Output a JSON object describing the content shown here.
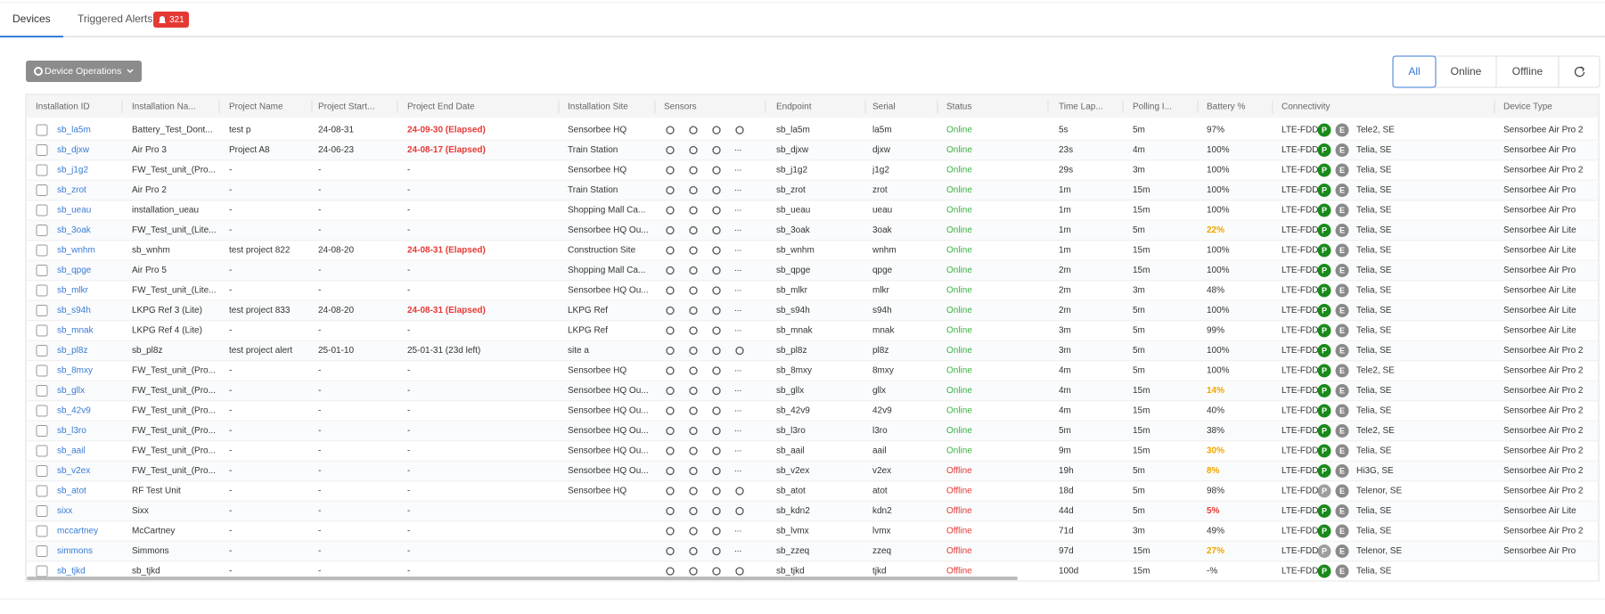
{
  "tabs": {
    "devices": "Devices",
    "alerts": "Triggered Alerts",
    "alert_count": "321"
  },
  "toolbar": {
    "operations": "Device Operations",
    "filters": [
      "All",
      "Online",
      "Offline"
    ]
  },
  "table": {
    "columns": [
      "Installation ID",
      "Installation Na...",
      "Project Name",
      "Project Start...",
      "Project End Date",
      "Installation Site",
      "Sensors",
      "Endpoint",
      "Serial",
      "Status",
      "Time Lap...",
      "Polling I...",
      "Battery %",
      "Connectivity",
      "Device Type"
    ],
    "status_colors": {
      "Online": "#3cb043",
      "Offline": "#e53935"
    },
    "rows": [
      {
        "id": "sb_la5m",
        "name": "Battery_Test_Dont...",
        "project": "test p",
        "start": "24-08-31",
        "end": "24-09-30 (Elapsed)",
        "end_color": "#e53935",
        "site": "Sensorbee HQ",
        "endpoint": "sb_la5m",
        "serial": "la5m",
        "status": "Online",
        "time": "5s",
        "polling": "5m",
        "battery": "97%",
        "network": "LTE-FDD",
        "p": "P",
        "e": "E",
        "operator": "Tele2, SE",
        "type": "Sensorbee Air Pro 2"
      },
      {
        "id": "sb_djxw",
        "name": "Air Pro 3",
        "project": "Project A8",
        "start": "24-06-23",
        "end": "24-08-17 (Elapsed)",
        "end_color": "#e53935",
        "site": "Train Station",
        "more": "...",
        "endpoint": "sb_djxw",
        "serial": "djxw",
        "status": "Online",
        "time": "23s",
        "polling": "4m",
        "battery": "100%",
        "network": "LTE-FDD",
        "p": "P",
        "e": "E",
        "operator": "Telia, SE",
        "type": "Sensorbee Air Pro"
      },
      {
        "id": "sb_j1g2",
        "name": "FW_Test_unit_(Pro...",
        "project": "-",
        "start": "-",
        "end": "-",
        "site": "Sensorbee HQ",
        "more": "...",
        "endpoint": "sb_j1g2",
        "serial": "j1g2",
        "status": "Online",
        "time": "29s",
        "polling": "3m",
        "battery": "100%",
        "network": "LTE-FDD",
        "p": "P",
        "e": "E",
        "operator": "Telia, SE",
        "type": "Sensorbee Air Pro 2"
      },
      {
        "id": "sb_zrot",
        "name": "Air Pro 2",
        "project": "-",
        "start": "-",
        "end": "-",
        "site": "Train Station",
        "more": "...",
        "endpoint": "sb_zrot",
        "serial": "zrot",
        "status": "Online",
        "time": "1m",
        "polling": "15m",
        "battery": "100%",
        "network": "LTE-FDD",
        "p": "P",
        "e": "E",
        "operator": "Telia, SE",
        "type": "Sensorbee Air Pro"
      },
      {
        "id": "sb_ueau",
        "name": "installation_ueau",
        "project": "-",
        "start": "-",
        "end": "-",
        "site": "Shopping Mall Ca...",
        "more": "...",
        "endpoint": "sb_ueau",
        "serial": "ueau",
        "status": "Online",
        "time": "1m",
        "polling": "15m",
        "battery": "100%",
        "network": "LTE-FDD",
        "p": "P",
        "e": "E",
        "operator": "Telia, SE",
        "type": "Sensorbee Air Pro"
      },
      {
        "id": "sb_3oak",
        "name": "FW_Test_unit_(Lite...",
        "project": "-",
        "start": "-",
        "end": "-",
        "site": "Sensorbee HQ Ou...",
        "more": "...",
        "endpoint": "sb_3oak",
        "serial": "3oak",
        "status": "Online",
        "time": "1m",
        "polling": "5m",
        "battery": "22%",
        "battery_color": "#f0a500",
        "network": "LTE-FDD",
        "p": "P",
        "e": "E",
        "operator": "Telia, SE",
        "type": "Sensorbee Air Lite"
      },
      {
        "id": "sb_wnhm",
        "name": "sb_wnhm",
        "project": "test project 822",
        "start": "24-08-20",
        "end": "24-08-31 (Elapsed)",
        "end_color": "#e53935",
        "site": "Construction Site",
        "more": "...",
        "endpoint": "sb_wnhm",
        "serial": "wnhm",
        "status": "Online",
        "time": "1m",
        "polling": "15m",
        "battery": "100%",
        "network": "LTE-FDD",
        "p": "P",
        "e": "E",
        "operator": "Telia, SE",
        "type": "Sensorbee Air Lite"
      },
      {
        "id": "sb_qpge",
        "name": "Air Pro 5",
        "project": "-",
        "start": "-",
        "end": "-",
        "site": "Shopping Mall Ca...",
        "more": "...",
        "endpoint": "sb_qpge",
        "serial": "qpge",
        "status": "Online",
        "time": "2m",
        "polling": "15m",
        "battery": "100%",
        "network": "LTE-FDD",
        "p": "P",
        "e": "E",
        "operator": "Telia, SE",
        "type": "Sensorbee Air Pro"
      },
      {
        "id": "sb_mlkr",
        "name": "FW_Test_unit_(Lite...",
        "project": "-",
        "start": "-",
        "end": "-",
        "site": "Sensorbee HQ Ou...",
        "more": "...",
        "endpoint": "sb_mlkr",
        "serial": "mlkr",
        "status": "Online",
        "time": "2m",
        "polling": "3m",
        "battery": "48%",
        "network": "LTE-FDD",
        "p": "P",
        "e": "E",
        "operator": "Telia, SE",
        "type": "Sensorbee Air Lite"
      },
      {
        "id": "sb_s94h",
        "name": "LKPG Ref 3 (Lite)",
        "project": "test project 833",
        "start": "24-08-20",
        "end": "24-08-31 (Elapsed)",
        "end_color": "#e53935",
        "site": "LKPG Ref",
        "more": "...",
        "endpoint": "sb_s94h",
        "serial": "s94h",
        "status": "Online",
        "time": "2m",
        "polling": "5m",
        "battery": "100%",
        "network": "LTE-FDD",
        "p": "P",
        "e": "E",
        "operator": "Telia, SE",
        "type": "Sensorbee Air Lite"
      },
      {
        "id": "sb_mnak",
        "name": "LKPG Ref 4 (Lite)",
        "project": "-",
        "start": "-",
        "end": "-",
        "site": "LKPG Ref",
        "more": "...",
        "endpoint": "sb_mnak",
        "serial": "mnak",
        "status": "Online",
        "time": "3m",
        "polling": "5m",
        "battery": "99%",
        "network": "LTE-FDD",
        "p": "P",
        "e": "E",
        "operator": "Telia, SE",
        "type": "Sensorbee Air Lite"
      },
      {
        "id": "sb_pl8z",
        "name": "sb_pl8z",
        "project": "test project alert",
        "start": "25-01-10",
        "end": "25-01-31 (23d left)",
        "site": "site a",
        "endpoint": "sb_pl8z",
        "serial": "pl8z",
        "status": "Online",
        "time": "3m",
        "polling": "5m",
        "battery": "100%",
        "network": "LTE-FDD",
        "p": "P",
        "e": "E",
        "operator": "Telia, SE",
        "type": "Sensorbee Air Pro 2"
      },
      {
        "id": "sb_8mxy",
        "name": "FW_Test_unit_(Pro...",
        "project": "-",
        "start": "-",
        "end": "-",
        "site": "Sensorbee HQ",
        "more": "...",
        "endpoint": "sb_8mxy",
        "serial": "8mxy",
        "status": "Online",
        "time": "4m",
        "polling": "5m",
        "battery": "100%",
        "network": "LTE-FDD",
        "p": "P",
        "e": "E",
        "operator": "Tele2, SE",
        "type": "Sensorbee Air Pro 2"
      },
      {
        "id": "sb_gllx",
        "name": "FW_Test_unit_(Pro...",
        "project": "-",
        "start": "-",
        "end": "-",
        "site": "Sensorbee HQ Ou...",
        "more": "...",
        "endpoint": "sb_gllx",
        "serial": "gllx",
        "status": "Online",
        "time": "4m",
        "polling": "15m",
        "battery": "14%",
        "battery_color": "#f0a500",
        "network": "LTE-FDD",
        "p": "P",
        "e": "E",
        "operator": "Telia, SE",
        "type": "Sensorbee Air Pro 2"
      },
      {
        "id": "sb_42v9",
        "name": "FW_Test_unit_(Pro...",
        "project": "-",
        "start": "-",
        "end": "-",
        "site": "Sensorbee HQ Ou...",
        "more": "...",
        "endpoint": "sb_42v9",
        "serial": "42v9",
        "status": "Online",
        "time": "4m",
        "polling": "15m",
        "battery": "40%",
        "network": "LTE-FDD",
        "p": "P",
        "e": "E",
        "operator": "Telia, SE",
        "type": "Sensorbee Air Pro 2"
      },
      {
        "id": "sb_l3ro",
        "name": "FW_Test_unit_(Pro...",
        "project": "-",
        "start": "-",
        "end": "-",
        "site": "Sensorbee HQ Ou...",
        "more": "...",
        "endpoint": "sb_l3ro",
        "serial": "l3ro",
        "status": "Online",
        "time": "5m",
        "polling": "15m",
        "battery": "38%",
        "network": "LTE-FDD",
        "p": "P",
        "e": "E",
        "operator": "Tele2, SE",
        "type": "Sensorbee Air Pro 2"
      },
      {
        "id": "sb_aail",
        "name": "FW_Test_unit_(Pro...",
        "project": "-",
        "start": "-",
        "end": "-",
        "site": "Sensorbee HQ Ou...",
        "more": "...",
        "endpoint": "sb_aail",
        "serial": "aail",
        "status": "Online",
        "time": "9m",
        "polling": "15m",
        "battery": "30%",
        "battery_color": "#f0a500",
        "network": "LTE-FDD",
        "p": "P",
        "e": "E",
        "operator": "Telia, SE",
        "type": "Sensorbee Air Pro 2"
      },
      {
        "id": "sb_v2ex",
        "name": "FW_Test_unit_(Pro...",
        "project": "-",
        "start": "-",
        "end": "-",
        "site": "Sensorbee HQ Ou...",
        "more": "...",
        "endpoint": "sb_v2ex",
        "serial": "v2ex",
        "status": "Offline",
        "time": "19h",
        "polling": "5m",
        "battery": "8%",
        "battery_color": "#f0a500",
        "network": "LTE-FDD",
        "p": "P",
        "e": "E",
        "operator": "Hi3G, SE",
        "type": "Sensorbee Air Pro 2"
      },
      {
        "id": "sb_atot",
        "name": "RF Test Unit",
        "project": "-",
        "start": "-",
        "end": "-",
        "site": "Sensorbee HQ",
        "endpoint": "sb_atot",
        "serial": "atot",
        "status": "Offline",
        "time": "18d",
        "polling": "5m",
        "battery": "98%",
        "network": "LTE-FDD",
        "p": "P",
        "p_color": "#9e9e9e",
        "e": "E",
        "operator": "Telenor, SE",
        "type": "Sensorbee Air Pro 2"
      },
      {
        "id": "sixx",
        "name": "Sixx",
        "project": "-",
        "start": "-",
        "end": "-",
        "endpoint": "sb_kdn2",
        "serial": "kdn2",
        "status": "Offline",
        "time": "44d",
        "polling": "5m",
        "battery": "5%",
        "battery_color": "#e53935",
        "network": "LTE-FDD",
        "p": "P",
        "e": "E",
        "operator": "Telia, SE",
        "type": "Sensorbee Air Lite"
      },
      {
        "id": "mccartney",
        "name": "McCartney",
        "project": "-",
        "start": "-",
        "end": "-",
        "more": "...",
        "endpoint": "sb_lvmx",
        "serial": "lvmx",
        "status": "Offline",
        "time": "71d",
        "polling": "3m",
        "battery": "49%",
        "network": "LTE-FDD",
        "p": "P",
        "e": "E",
        "operator": "Telia, SE",
        "type": "Sensorbee Air Pro 2"
      },
      {
        "id": "simmons",
        "name": "Simmons",
        "project": "-",
        "start": "-",
        "end": "-",
        "more": "...",
        "endpoint": "sb_zzeq",
        "serial": "zzeq",
        "status": "Offline",
        "time": "97d",
        "polling": "15m",
        "battery": "27%",
        "battery_color": "#f0a500",
        "network": "LTE-FDD",
        "p": "P",
        "p_color": "#9e9e9e",
        "e": "E",
        "operator": "Telenor, SE",
        "type": "Sensorbee Air Pro"
      },
      {
        "id": "sb_tjkd",
        "name": "sb_tjkd",
        "project": "-",
        "start": "-",
        "end": "-",
        "endpoint": "sb_tjkd",
        "serial": "tjkd",
        "status": "Offline",
        "time": "100d",
        "polling": "15m",
        "battery": "-%",
        "network": "LTE-FDD",
        "p": "P",
        "e": "E",
        "operator": "Telia, SE"
      }
    ]
  }
}
